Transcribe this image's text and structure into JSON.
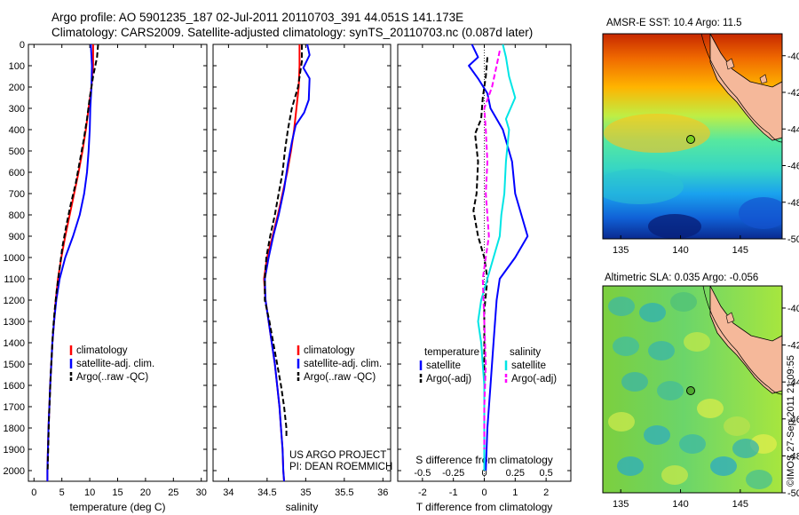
{
  "title_line1": "Argo profile: AO 5901235_187 02-Jul-2011 20110703_391 44.051S 141.173E",
  "title_line2": "Climatology: CARS2009. Satellite-adjusted climatology: synTS_20110703.nc (0.087d later)",
  "side_text": "©IMOS 27-Sep-2011 21:09:55",
  "colors": {
    "climatology": "#ff0000",
    "satellite": "#0000ff",
    "argo": "#000000",
    "sal_satellite": "#00e5e5",
    "sal_argo": "#ff00ff"
  },
  "chart_data": [
    {
      "type": "line",
      "name": "temperature",
      "xlabel": "temperature (deg C)",
      "xlim": [
        -1,
        31
      ],
      "ylim": [
        0,
        2050
      ],
      "xticks": [
        "0",
        "5",
        "10",
        "15",
        "20",
        "25",
        "30"
      ],
      "yticks": [
        "0",
        "100",
        "200",
        "300",
        "400",
        "500",
        "600",
        "700",
        "800",
        "900",
        "1000",
        "1100",
        "1200",
        "1300",
        "1400",
        "1500",
        "1600",
        "1700",
        "1800",
        "1900",
        "2000"
      ],
      "legend": [
        "climatology",
        "satellite-adj. clim.",
        "Argo(..raw -QC)"
      ],
      "series": [
        {
          "name": "climatology",
          "color": "#ff0000",
          "points": [
            [
              10.6,
              0
            ],
            [
              10.6,
              100
            ],
            [
              10.3,
              200
            ],
            [
              9.8,
              300
            ],
            [
              9.3,
              400
            ],
            [
              8.7,
              500
            ],
            [
              8.0,
              600
            ],
            [
              7.2,
              700
            ],
            [
              6.4,
              800
            ],
            [
              5.6,
              900
            ],
            [
              4.9,
              1000
            ],
            [
              4.3,
              1100
            ],
            [
              3.9,
              1200
            ],
            [
              3.6,
              1300
            ],
            [
              3.3,
              1400
            ],
            [
              3.1,
              1500
            ],
            [
              2.9,
              1600
            ],
            [
              2.75,
              1700
            ],
            [
              2.6,
              1800
            ],
            [
              2.5,
              1900
            ],
            [
              2.4,
              2000
            ],
            [
              2.4,
              2050
            ]
          ]
        },
        {
          "name": "satellite-adj. clim.",
          "color": "#0000ff",
          "points": [
            [
              10.2,
              0
            ],
            [
              10.4,
              100
            ],
            [
              10.3,
              200
            ],
            [
              10.1,
              300
            ],
            [
              10.0,
              400
            ],
            [
              9.8,
              500
            ],
            [
              9.5,
              600
            ],
            [
              9.0,
              700
            ],
            [
              8.2,
              800
            ],
            [
              7.0,
              900
            ],
            [
              5.6,
              1000
            ],
            [
              4.6,
              1100
            ],
            [
              4.0,
              1200
            ],
            [
              3.6,
              1300
            ],
            [
              3.3,
              1400
            ],
            [
              3.1,
              1500
            ],
            [
              2.9,
              1600
            ],
            [
              2.75,
              1700
            ],
            [
              2.6,
              1800
            ],
            [
              2.5,
              1900
            ],
            [
              2.4,
              2000
            ],
            [
              2.4,
              2050
            ]
          ]
        },
        {
          "name": "Argo(..raw -QC)",
          "color": "#000000",
          "dashed": true,
          "points": [
            [
              11.5,
              0
            ],
            [
              11.3,
              60
            ],
            [
              10.6,
              150
            ],
            [
              10.0,
              250
            ],
            [
              9.5,
              350
            ],
            [
              8.9,
              450
            ],
            [
              8.2,
              550
            ],
            [
              7.5,
              650
            ],
            [
              6.6,
              750
            ],
            [
              5.8,
              850
            ],
            [
              5.1,
              950
            ],
            [
              4.6,
              1050
            ],
            [
              4.1,
              1150
            ],
            [
              3.7,
              1250
            ],
            [
              3.4,
              1350
            ],
            [
              3.2,
              1450
            ],
            [
              3.0,
              1550
            ],
            [
              2.85,
              1650
            ],
            [
              2.7,
              1750
            ],
            [
              2.6,
              1850
            ],
            [
              2.5,
              1950
            ],
            [
              2.45,
              2000
            ]
          ]
        }
      ]
    },
    {
      "type": "line",
      "name": "salinity",
      "xlabel": "salinity",
      "xlim": [
        33.8,
        36.1
      ],
      "ylim": [
        0,
        2050
      ],
      "xticks": [
        "34",
        "34.5",
        "35",
        "35.5",
        "36"
      ],
      "legend": [
        "climatology",
        "satellite-adj. clim.",
        "Argo(..raw -QC)"
      ],
      "annotation": [
        "US ARGO PROJECT",
        "PI: DEAN ROEMMICH"
      ],
      "series": [
        {
          "name": "climatology",
          "color": "#ff0000",
          "points": [
            [
              34.92,
              0
            ],
            [
              34.92,
              100
            ],
            [
              34.91,
              200
            ],
            [
              34.88,
              300
            ],
            [
              34.85,
              400
            ],
            [
              34.81,
              500
            ],
            [
              34.76,
              600
            ],
            [
              34.7,
              700
            ],
            [
              34.64,
              800
            ],
            [
              34.57,
              900
            ],
            [
              34.5,
              1000
            ],
            [
              34.46,
              1100
            ],
            [
              34.48,
              1200
            ],
            [
              34.52,
              1300
            ],
            [
              34.56,
              1400
            ],
            [
              34.6,
              1500
            ],
            [
              34.63,
              1600
            ],
            [
              34.66,
              1700
            ],
            [
              34.68,
              1800
            ],
            [
              34.7,
              1900
            ],
            [
              34.71,
              2000
            ],
            [
              34.72,
              2050
            ]
          ]
        },
        {
          "name": "satellite-adj. clim.",
          "color": "#0000ff",
          "points": [
            [
              35.02,
              0
            ],
            [
              35.05,
              50
            ],
            [
              34.97,
              110
            ],
            [
              35.05,
              160
            ],
            [
              35.04,
              260
            ],
            [
              34.98,
              320
            ],
            [
              34.87,
              380
            ],
            [
              34.82,
              460
            ],
            [
              34.77,
              560
            ],
            [
              34.72,
              680
            ],
            [
              34.65,
              800
            ],
            [
              34.58,
              900
            ],
            [
              34.52,
              1000
            ],
            [
              34.47,
              1100
            ],
            [
              34.48,
              1200
            ],
            [
              34.52,
              1300
            ],
            [
              34.56,
              1400
            ],
            [
              34.6,
              1500
            ],
            [
              34.63,
              1600
            ],
            [
              34.66,
              1700
            ],
            [
              34.68,
              1800
            ],
            [
              34.7,
              1900
            ],
            [
              34.71,
              2000
            ],
            [
              34.72,
              2050
            ]
          ]
        },
        {
          "name": "Argo(..raw -QC)",
          "color": "#000000",
          "dashed": true,
          "points": [
            [
              34.95,
              0
            ],
            [
              34.95,
              80
            ],
            [
              34.9,
              200
            ],
            [
              34.82,
              300
            ],
            [
              34.77,
              400
            ],
            [
              34.73,
              500
            ],
            [
              34.7,
              600
            ],
            [
              34.65,
              700
            ],
            [
              34.6,
              800
            ],
            [
              34.54,
              900
            ],
            [
              34.49,
              1000
            ],
            [
              34.47,
              1100
            ],
            [
              34.47,
              1200
            ],
            [
              34.53,
              1300
            ],
            [
              34.58,
              1400
            ],
            [
              34.63,
              1500
            ],
            [
              34.68,
              1600
            ],
            [
              34.72,
              1700
            ],
            [
              34.75,
              1800
            ],
            [
              34.75,
              1850
            ]
          ]
        }
      ]
    },
    {
      "type": "line",
      "name": "difference",
      "xlabel": "T difference from climatology",
      "xlabel2": "S difference from climatology",
      "xlim": [
        -2.8,
        2.8
      ],
      "ylim": [
        0,
        2050
      ],
      "xticks": [
        "-2",
        "-1",
        "0",
        "1",
        "2"
      ],
      "xticks_s": [
        "-0.5",
        "-0.25",
        "0",
        "0.25",
        "0.5"
      ],
      "legend_t_title": "temperature",
      "legend_s_title": "salinity",
      "legend_t": [
        "satellite",
        "Argo(-adj)"
      ],
      "legend_s": [
        "satellite",
        "Argo(-adj)"
      ],
      "series": [
        {
          "name": "T satellite",
          "color": "#0000ff",
          "points": [
            [
              -0.4,
              0
            ],
            [
              -0.2,
              60
            ],
            [
              -0.5,
              100
            ],
            [
              -0.2,
              160
            ],
            [
              0.1,
              230
            ],
            [
              0.2,
              300
            ],
            [
              0.6,
              400
            ],
            [
              0.9,
              550
            ],
            [
              1.0,
              700
            ],
            [
              1.3,
              850
            ],
            [
              1.4,
              900
            ],
            [
              1.0,
              1000
            ],
            [
              0.5,
              1100
            ],
            [
              0.4,
              1200
            ],
            [
              0.3,
              1400
            ],
            [
              0.2,
              1600
            ],
            [
              0.1,
              1800
            ],
            [
              0.05,
              2000
            ]
          ]
        },
        {
          "name": "T Argo(-adj)",
          "color": "#000000",
          "dashed": true,
          "points": [
            [
              0.1,
              60
            ],
            [
              0.05,
              150
            ],
            [
              -0.05,
              250
            ],
            [
              -0.1,
              350
            ],
            [
              -0.3,
              420
            ],
            [
              -0.2,
              550
            ],
            [
              -0.25,
              700
            ],
            [
              -0.35,
              780
            ],
            [
              -0.2,
              900
            ],
            [
              0.0,
              1000
            ],
            [
              0.1,
              1100
            ],
            [
              0.0,
              1250
            ],
            [
              0.0,
              1400
            ],
            [
              0.0,
              1600
            ],
            [
              0.0,
              1800
            ],
            [
              0.0,
              1900
            ]
          ]
        },
        {
          "name": "S satellite",
          "color": "#00e5e5",
          "points": [
            [
              0.6,
              0
            ],
            [
              0.7,
              60
            ],
            [
              0.8,
              150
            ],
            [
              1.0,
              250
            ],
            [
              0.7,
              350
            ],
            [
              0.8,
              400
            ],
            [
              0.7,
              550
            ],
            [
              0.65,
              700
            ],
            [
              0.55,
              800
            ],
            [
              0.5,
              900
            ],
            [
              0.3,
              1000
            ],
            [
              0.1,
              1100
            ],
            [
              -0.1,
              1200
            ],
            [
              -0.2,
              1300
            ],
            [
              -0.1,
              1400
            ],
            [
              0.0,
              1600
            ],
            [
              0.0,
              1800
            ],
            [
              0.0,
              2000
            ]
          ]
        },
        {
          "name": "S Argo(-adj)",
          "color": "#ff00ff",
          "dashed": true,
          "points": [
            [
              0.5,
              30
            ],
            [
              0.4,
              100
            ],
            [
              0.25,
              200
            ],
            [
              0.0,
              300
            ],
            [
              0.05,
              400
            ],
            [
              0.1,
              550
            ],
            [
              0.05,
              700
            ],
            [
              0.1,
              800
            ],
            [
              0.15,
              900
            ],
            [
              0.05,
              1000
            ],
            [
              -0.05,
              1100
            ],
            [
              0.0,
              1300
            ],
            [
              0.05,
              1500
            ],
            [
              0.0,
              1700
            ],
            [
              0.0,
              1900
            ]
          ]
        }
      ]
    }
  ],
  "maps": [
    {
      "title": "AMSR-E SST: 10.4  Argo: 11.5",
      "xticks": [
        "135",
        "140",
        "145"
      ],
      "yticks": [
        "-40",
        "-42",
        "-44",
        "-46",
        "-48",
        "-50"
      ],
      "kind": "sst"
    },
    {
      "title": "Altimetric SLA: 0.035  Argo: -0.056",
      "xticks": [
        "135",
        "140",
        "145"
      ],
      "yticks": [
        "-40",
        "-42",
        "-44",
        "-46",
        "-48",
        "-50"
      ],
      "kind": "sla"
    }
  ]
}
